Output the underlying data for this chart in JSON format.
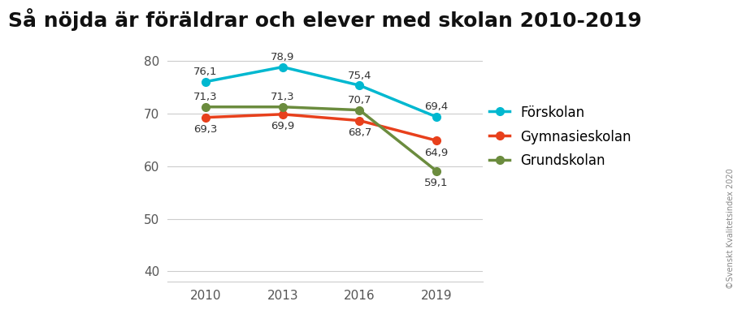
{
  "title": "Så nöjda är föräldrar och elever med skolan 2010-2019",
  "years": [
    2010,
    2013,
    2016,
    2019
  ],
  "series": [
    {
      "name": "Förskolan",
      "values": [
        76.1,
        78.9,
        75.4,
        69.4
      ],
      "color": "#00B8D0",
      "labels_above": [
        true,
        true,
        true,
        true
      ],
      "label_offsets": [
        4,
        4,
        4,
        4
      ]
    },
    {
      "name": "Gymnasieskolan",
      "values": [
        69.3,
        69.9,
        68.7,
        64.9
      ],
      "color": "#E8401C",
      "labels_above": [
        false,
        false,
        false,
        false
      ],
      "label_offsets": [
        -6,
        -6,
        -6,
        -6
      ]
    },
    {
      "name": "Grundskolan",
      "values": [
        71.3,
        71.3,
        70.7,
        59.1
      ],
      "color": "#6B8C3E",
      "labels_above": [
        true,
        true,
        true,
        false
      ],
      "label_offsets": [
        4,
        4,
        4,
        -6
      ]
    }
  ],
  "ylim": [
    38,
    84
  ],
  "yticks": [
    40,
    50,
    60,
    70,
    80
  ],
  "xlim": [
    2008.5,
    2020.8
  ],
  "background_color": "#FFFFFF",
  "grid_color": "#CCCCCC",
  "title_fontsize": 18,
  "label_fontsize": 9.5,
  "legend_fontsize": 12,
  "tick_fontsize": 11,
  "copyright_text": "©Svenskt Kvalitetsindex 2020"
}
